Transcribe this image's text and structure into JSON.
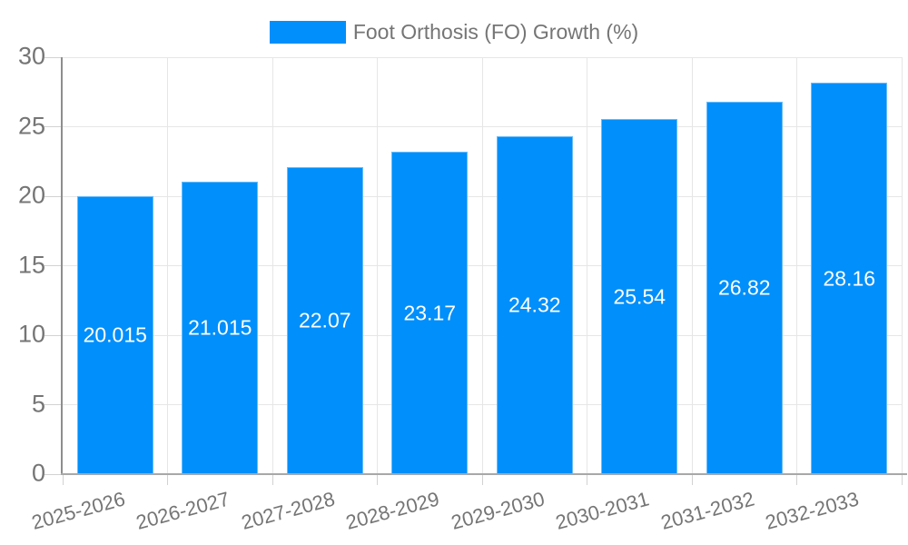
{
  "chart_data": {
    "type": "bar",
    "title": "Foot Orthosis (FO) Growth (%)",
    "categories": [
      "2025-2026",
      "2026-2027",
      "2027-2028",
      "2028-2029",
      "2029-2030",
      "2030-2031",
      "2031-2032",
      "2032-2033"
    ],
    "values": [
      20.015,
      21.015,
      22.07,
      23.17,
      24.32,
      25.54,
      26.82,
      28.16
    ],
    "data_labels": [
      "20.015",
      "21.015",
      "22.07",
      "23.17",
      "24.32",
      "25.54",
      "26.82",
      "28.16"
    ],
    "xlabel": "",
    "ylabel": "",
    "ylim": [
      0,
      30
    ],
    "ytick_step": 5,
    "ytick_labels": [
      "0",
      "5",
      "10",
      "15",
      "20",
      "25",
      "30"
    ],
    "grid": true,
    "legend": {
      "position": "top",
      "entries": [
        "Foot Orthosis (FO) Growth (%)"
      ]
    },
    "series_color": "#008FFB",
    "bar_label_color": "#ffffff",
    "axis_text_color": "#757575"
  }
}
